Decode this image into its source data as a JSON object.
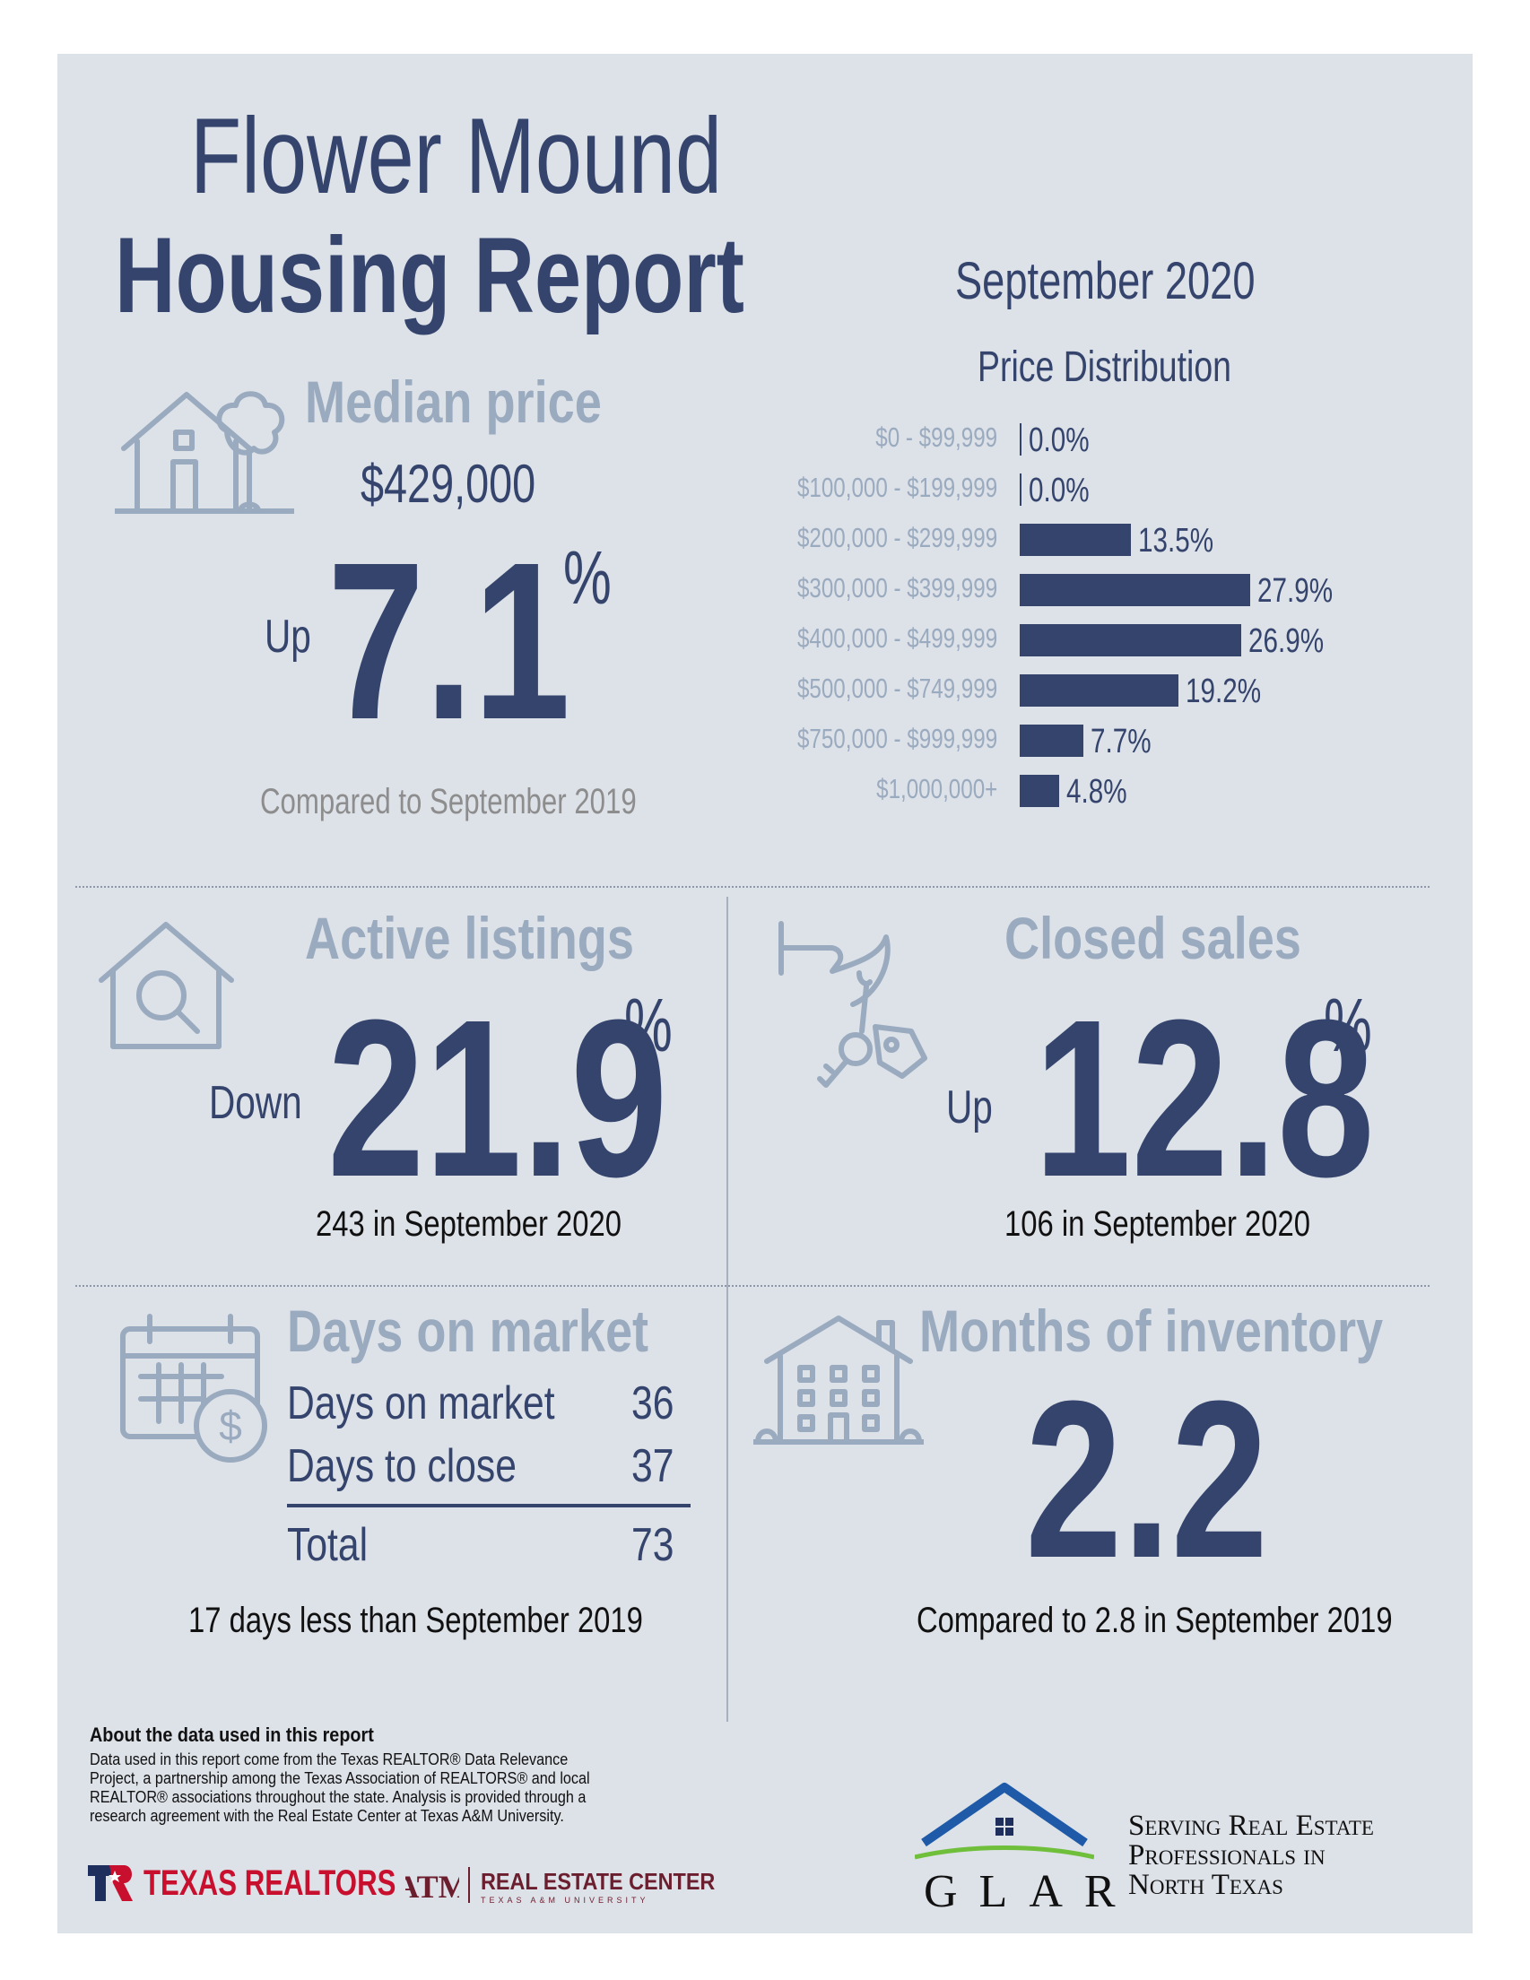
{
  "header": {
    "title_line1": "Flower Mound",
    "title_line2": "Housing Report",
    "month": "September 2020"
  },
  "median_price": {
    "heading": "Median price",
    "value": "$429,000",
    "direction": "Up",
    "change": "7.1",
    "unit": "%",
    "comparison": "Compared to September 2019"
  },
  "price_distribution": {
    "title": "Price Distribution"
  },
  "chart_data": {
    "type": "bar",
    "orientation": "horizontal",
    "title": "Price Distribution",
    "categories": [
      "$0 - $99,999",
      "$100,000 - $199,999",
      "$200,000 - $299,999",
      "$300,000 - $399,999",
      "$400,000 - $499,999",
      "$500,000 - $749,999",
      "$750,000 - $999,999",
      "$1,000,000+"
    ],
    "values": [
      0.0,
      0.0,
      13.5,
      27.9,
      26.9,
      19.2,
      7.7,
      4.8
    ],
    "value_labels": [
      "0.0%",
      "0.0%",
      "13.5%",
      "27.9%",
      "26.9%",
      "19.2%",
      "7.7%",
      "4.8%"
    ],
    "xlim": [
      0,
      30
    ],
    "grid": false,
    "bar_color": "#34446c"
  },
  "active_listings": {
    "heading": "Active listings",
    "direction": "Down",
    "change": "21.9",
    "unit": "%",
    "detail": "243 in September 2020"
  },
  "closed_sales": {
    "heading": "Closed sales",
    "direction": "Up",
    "change": "12.8",
    "unit": "%",
    "detail": "106 in September 2020"
  },
  "days_on_market": {
    "heading": "Days on market",
    "rows": [
      {
        "label": "Days on market",
        "value": "36"
      },
      {
        "label": "Days to close",
        "value": "37"
      }
    ],
    "total_label": "Total",
    "total_value": "73",
    "comparison": "17 days less than September 2019"
  },
  "months_inventory": {
    "heading": "Months of inventory",
    "value": "2.2",
    "comparison": "Compared to 2.8 in September 2019"
  },
  "footer": {
    "about_heading": "About the data used in this report",
    "about_text": "Data used in this report come from the Texas REALTOR® Data Relevance Project, a partnership among the Texas Association of REALTORS® and local REALTOR® associations throughout the state. Analysis is provided through a research agreement with the Real Estate Center at Texas A&M University.",
    "texas_realtors": "TEXAS REALTORS",
    "rec_name": "REAL ESTATE CENTER",
    "rec_sub": "TEXAS A&M UNIVERSITY",
    "glar": "GLAR",
    "tagline1": "Serving Real Estate",
    "tagline2": "Professionals in",
    "tagline3": "North Texas"
  },
  "colors": {
    "navy": "#34446c",
    "muted": "#9aaabf",
    "background": "#dde1e8",
    "texas_red": "#c8102e",
    "aggie_maroon": "#6b1e2e",
    "glar_green": "#6fbf3b"
  }
}
